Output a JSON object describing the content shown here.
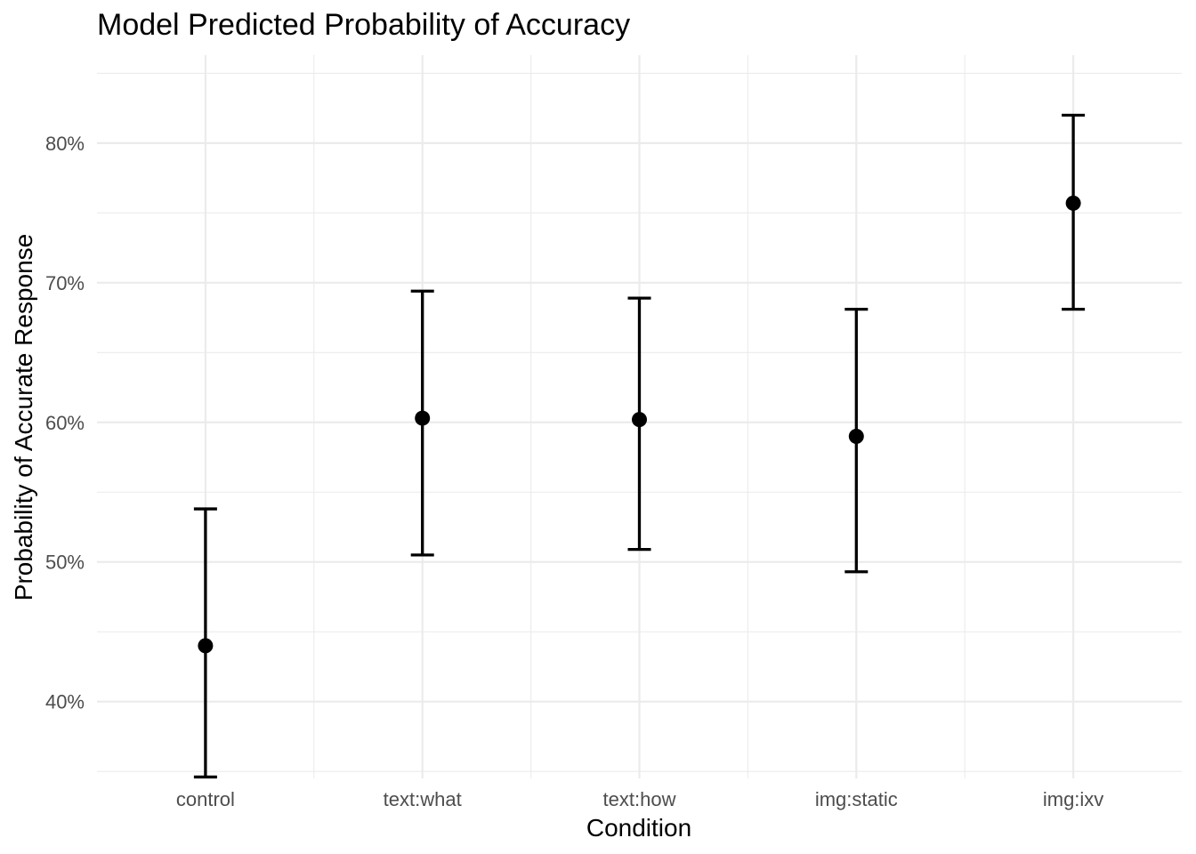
{
  "chart_data": {
    "type": "scatter",
    "title": "Model Predicted Probability of Accuracy",
    "xlabel": "Condition",
    "ylabel": "Probability of Accurate Response",
    "categories": [
      "control",
      "text:what",
      "text:how",
      "img:static",
      "img:ixv"
    ],
    "estimates": [
      0.44,
      0.603,
      0.602,
      0.59,
      0.757
    ],
    "lower": [
      0.346,
      0.505,
      0.509,
      0.493,
      0.681
    ],
    "upper": [
      0.538,
      0.694,
      0.689,
      0.681,
      0.82
    ],
    "ylim": [
      0.345,
      0.863
    ],
    "yticks": [
      0.4,
      0.5,
      0.6,
      0.7,
      0.8
    ],
    "ytick_labels": [
      "40%",
      "50%",
      "60%",
      "70%",
      "80%"
    ],
    "grid": true,
    "legend": "none",
    "colors": {
      "points": "#000000",
      "errorbars": "#000000",
      "grid": "#ebebeb",
      "tick_text": "#4d4d4d"
    }
  }
}
